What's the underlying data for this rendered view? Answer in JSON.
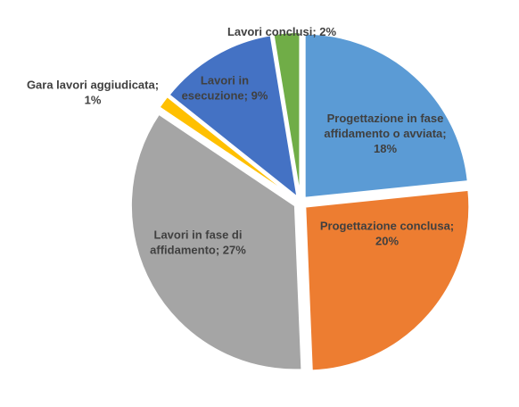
{
  "chart_data": {
    "type": "pie",
    "title": "",
    "slices": [
      {
        "label_lines": [
          "Progettazione in fase",
          "affidamento o avviata;",
          "18%"
        ],
        "value": 18,
        "color": "#5B9BD5",
        "label_color": "#404040"
      },
      {
        "label_lines": [
          "Progettazione conclusa;",
          "20%"
        ],
        "value": 20,
        "color": "#ED7D31",
        "label_color": "#404040"
      },
      {
        "label_lines": [
          "Lavori in fase di",
          "affidamento; 27%"
        ],
        "value": 27,
        "color": "#A5A5A5",
        "label_color": "#404040"
      },
      {
        "label_lines": [
          "Gara lavori aggiudicata;",
          "1%"
        ],
        "value": 1,
        "color": "#FFC000",
        "label_color": "#404040"
      },
      {
        "label_lines": [
          "Lavori in",
          "esecuzione; 9%"
        ],
        "value": 9,
        "color": "#4472C4",
        "label_color": "#404040"
      },
      {
        "label_lines": [
          "Lavori conclusi; 2%"
        ],
        "value": 2,
        "color": "#70AD47",
        "label_color": "#404040"
      }
    ],
    "legend": "none"
  }
}
